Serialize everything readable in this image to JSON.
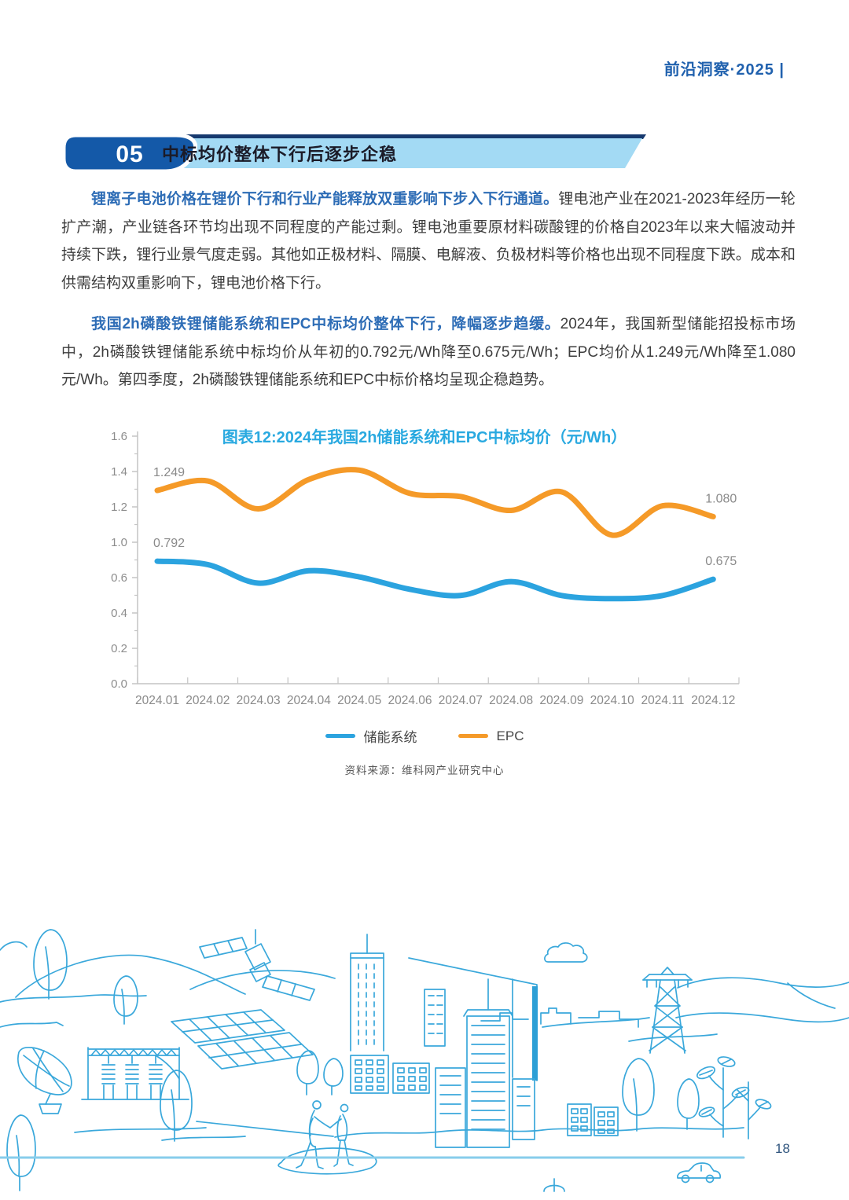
{
  "page": {
    "header_text": "前沿洞察·2025 |",
    "page_number": "18"
  },
  "section": {
    "number": "05",
    "title": "中标均价整体下行后逐步企稳"
  },
  "paragraphs": [
    {
      "lead": "锂离子电池价格在锂价下行和行业产能释放双重影响下步入下行通道。",
      "body": "锂电池产业在2021-2023年经历一轮扩产潮，产业链各环节均出现不同程度的产能过剩。锂电池重要原材料碳酸锂的价格自2023年以来大幅波动并持续下跌，锂行业景气度走弱。其他如正极材料、隔膜、电解液、负极材料等价格也出现不同程度下跌。成本和供需结构双重影响下，锂电池价格下行。"
    },
    {
      "lead": "我国2h磷酸铁锂储能系统和EPC中标均价整体下行，降幅逐步趋缓。",
      "body": "2024年，我国新型储能招投标市场中，2h磷酸铁锂储能系统中标均价从年初的0.792元/Wh降至0.675元/Wh；EPC均价从1.249元/Wh降至1.080元/Wh。第四季度，2h磷酸铁锂储能系统和EPC中标价格均呈现企稳趋势。"
    }
  ],
  "chart_data": {
    "type": "line",
    "title": "图表12:2024年我国2h储能系统和EPC中标均价（元/Wh）",
    "source": "资料来源：维科网产业研究中心",
    "categories": [
      "2024.01",
      "2024.02",
      "2024.03",
      "2024.04",
      "2024.05",
      "2024.06",
      "2024.07",
      "2024.08",
      "2024.09",
      "2024.10",
      "2024.11",
      "2024.12"
    ],
    "series": [
      {
        "name": "储能系统",
        "color": "#2BA3DF",
        "values": [
          0.792,
          0.77,
          0.65,
          0.73,
          0.69,
          0.61,
          0.57,
          0.66,
          0.57,
          0.55,
          0.57,
          0.675
        ],
        "first_label": "0.792",
        "last_label": "0.675"
      },
      {
        "name": "EPC",
        "color": "#F59A28",
        "values": [
          1.249,
          1.31,
          1.13,
          1.32,
          1.38,
          1.23,
          1.21,
          1.12,
          1.24,
          0.96,
          1.15,
          1.08
        ],
        "first_label": "1.249",
        "last_label": "1.080"
      }
    ],
    "ylim": [
      0,
      1.6
    ],
    "y_tick_labels_top_to_bottom": [
      "1.6",
      "1.4",
      "1.2",
      "1.0",
      "0.6",
      "0.4",
      "0.2",
      "0.0"
    ],
    "grid": "off",
    "legend_position": "bottom"
  },
  "colors": {
    "accent_dark_blue": "#1A5DAB",
    "banner_light_blue": "#A3DAF4",
    "banner_top_stripe": "#16396E",
    "banner_title_text": "#1B1B28",
    "chart_title_blue": "#29A9E0",
    "line_blue": "#2BA3DF",
    "line_orange": "#F59A28",
    "annotation_gray": "#8A8A8A",
    "axis_gray": "#C4C4C4",
    "illustration_blue": "#3AA8DB"
  }
}
